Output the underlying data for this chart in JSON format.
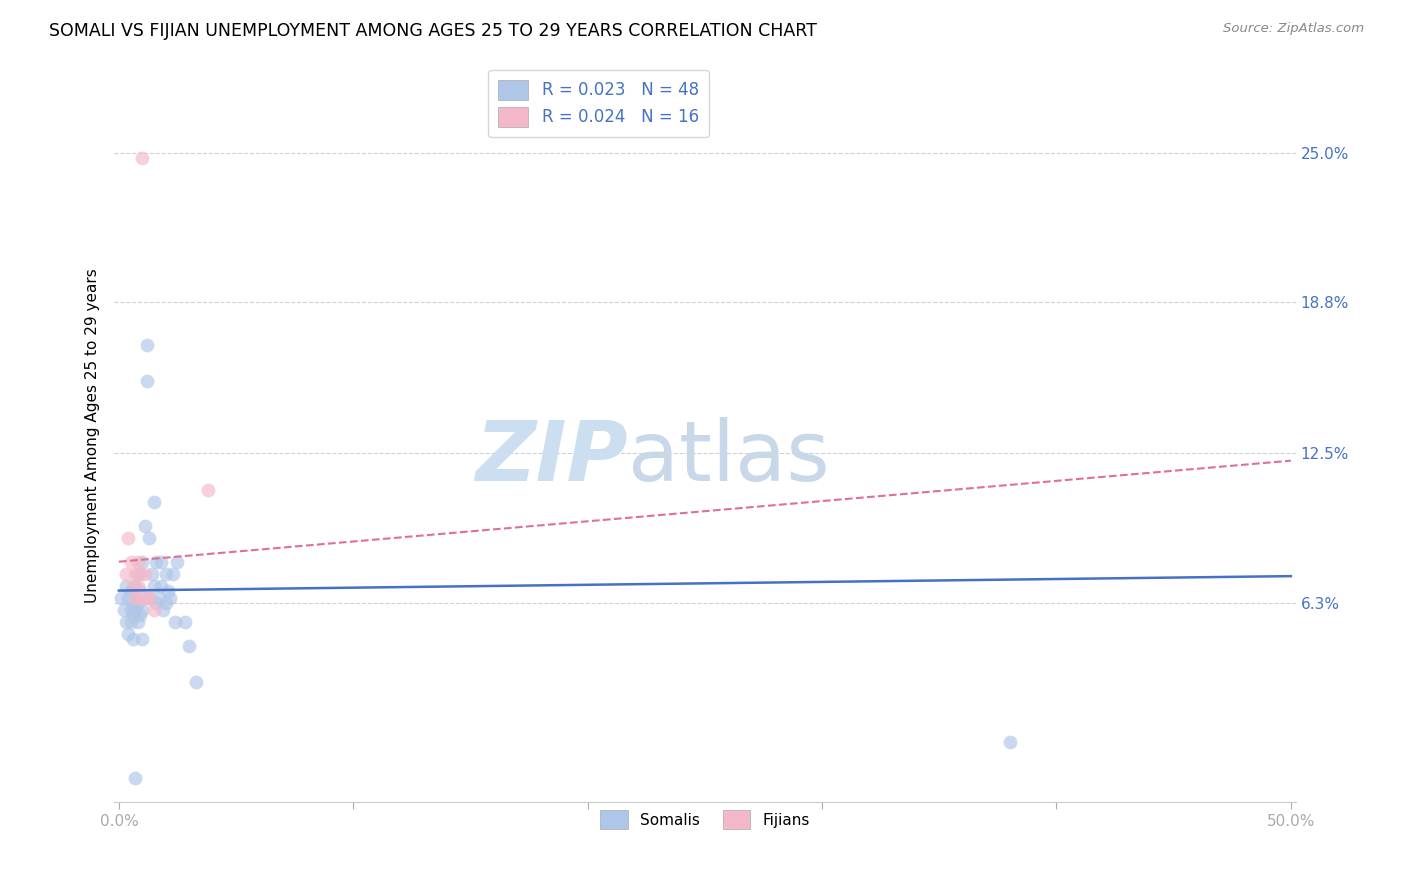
{
  "title": "SOMALI VS FIJIAN UNEMPLOYMENT AMONG AGES 25 TO 29 YEARS CORRELATION CHART",
  "source": "Source: ZipAtlas.com",
  "ylabel": "Unemployment Among Ages 25 to 29 years",
  "xlim": [
    0.0,
    0.5
  ],
  "ylim": [
    -0.02,
    0.285
  ],
  "ytick_positions": [
    0.063,
    0.125,
    0.188,
    0.25
  ],
  "ytick_labels": [
    "6.3%",
    "12.5%",
    "18.8%",
    "25.0%"
  ],
  "xtick_positions": [
    0.0,
    0.1,
    0.2,
    0.3,
    0.4,
    0.5
  ],
  "xtick_labels": [
    "0.0%",
    "",
    "",
    "",
    "",
    "50.0%"
  ],
  "somali_color": "#aec6e8",
  "fijian_color": "#f4b8c8",
  "trend_somali_color": "#4472c4",
  "trend_fijian_color": "#e07090",
  "bg_color": "#ffffff",
  "grid_color": "#d0d0d0",
  "tick_color": "#4472c4",
  "marker_size": 100,
  "trend_somali_x0": 0.0,
  "trend_somali_y0": 0.068,
  "trend_somali_x1": 0.5,
  "trend_somali_y1": 0.074,
  "trend_fijian_x0": 0.0,
  "trend_fijian_y0": 0.08,
  "trend_fijian_x1": 0.5,
  "trend_fijian_y1": 0.122,
  "somali_x": [
    0.001,
    0.002,
    0.003,
    0.003,
    0.004,
    0.004,
    0.005,
    0.005,
    0.005,
    0.006,
    0.006,
    0.006,
    0.007,
    0.007,
    0.008,
    0.008,
    0.008,
    0.009,
    0.009,
    0.01,
    0.01,
    0.01,
    0.011,
    0.012,
    0.012,
    0.013,
    0.013,
    0.014,
    0.015,
    0.015,
    0.016,
    0.016,
    0.017,
    0.018,
    0.018,
    0.019,
    0.02,
    0.02,
    0.021,
    0.022,
    0.023,
    0.024,
    0.025,
    0.028,
    0.03,
    0.033,
    0.38,
    0.007
  ],
  "somali_y": [
    0.065,
    0.06,
    0.055,
    0.07,
    0.05,
    0.065,
    0.06,
    0.068,
    0.055,
    0.063,
    0.058,
    0.048,
    0.07,
    0.06,
    0.055,
    0.063,
    0.075,
    0.058,
    0.068,
    0.06,
    0.048,
    0.08,
    0.095,
    0.155,
    0.17,
    0.065,
    0.09,
    0.075,
    0.07,
    0.105,
    0.063,
    0.08,
    0.065,
    0.07,
    0.08,
    0.06,
    0.063,
    0.075,
    0.068,
    0.065,
    0.075,
    0.055,
    0.08,
    0.055,
    0.045,
    0.03,
    0.005,
    -0.01
  ],
  "fijian_x": [
    0.003,
    0.004,
    0.005,
    0.006,
    0.007,
    0.007,
    0.008,
    0.008,
    0.009,
    0.009,
    0.01,
    0.011,
    0.012,
    0.013,
    0.015,
    0.038
  ],
  "fijian_y": [
    0.075,
    0.09,
    0.08,
    0.07,
    0.075,
    0.065,
    0.07,
    0.08,
    0.065,
    0.075,
    0.248,
    0.075,
    0.065,
    0.065,
    0.06,
    0.11
  ],
  "watermark_zip_color": "#ccdff0",
  "watermark_atlas_color": "#c8d8e8"
}
